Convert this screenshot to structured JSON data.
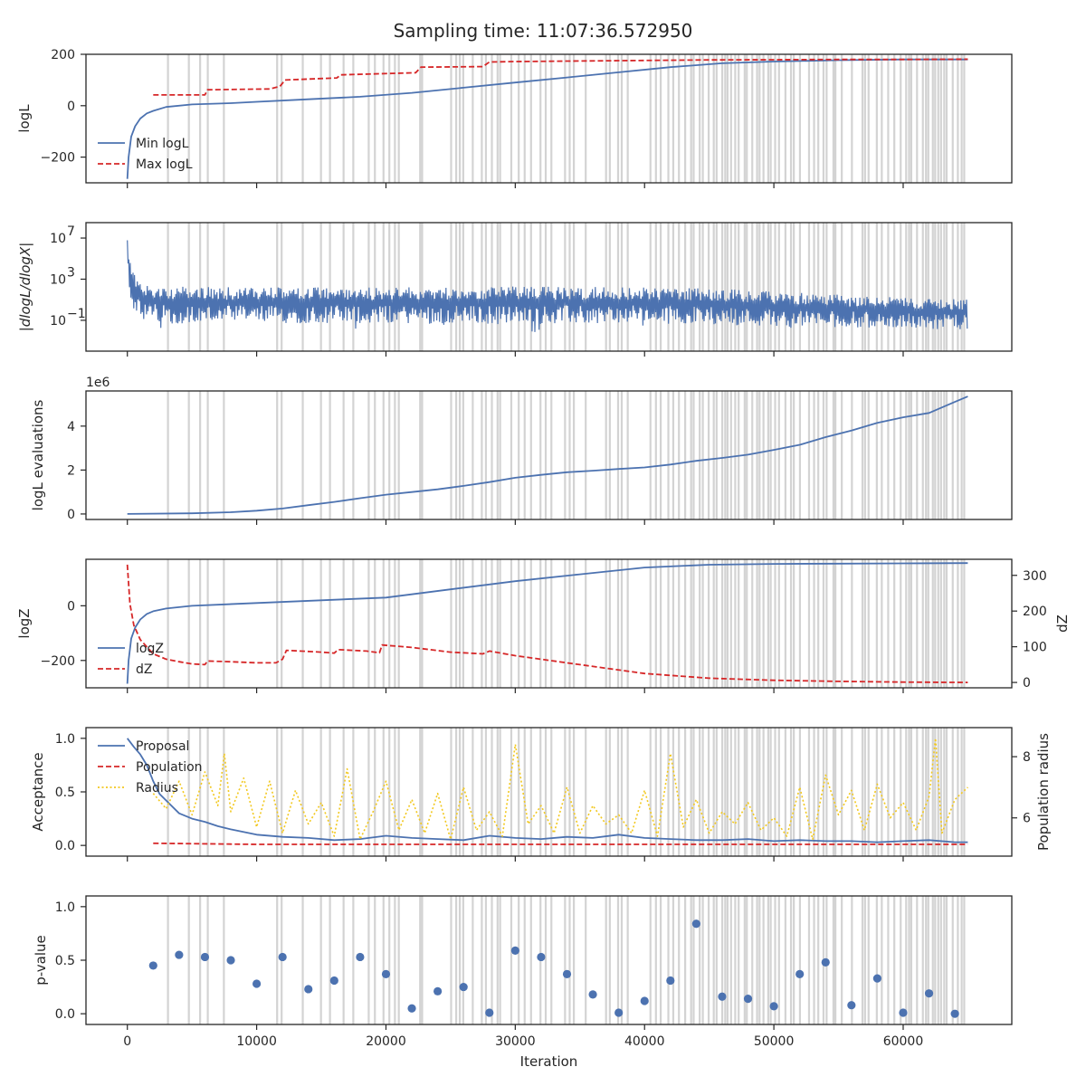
{
  "figure": {
    "title": "Sampling time: 11:07:36.572950",
    "colors": {
      "blue": "#4c72b0",
      "red": "#d62728",
      "gold": "#f2c81e",
      "band": "#d3d3d3",
      "axis": "#262626"
    }
  },
  "chart_data": [
    {
      "type": "line",
      "id": "logl",
      "ylabel": "logL",
      "xlim": [
        -3200,
        68400
      ],
      "ylim": [
        -300,
        200
      ],
      "yticks": [
        -200,
        0,
        200
      ],
      "ytick_labels": [
        "−200",
        "0",
        "200"
      ],
      "legend": {
        "placement": "center-left",
        "entries": [
          "Min logL",
          "Max logL"
        ]
      },
      "series": [
        {
          "name": "Min logL",
          "style": "solid",
          "color": "#4c72b0",
          "x": [
            0,
            100,
            300,
            600,
            1000,
            1500,
            2000,
            3000,
            5000,
            8000,
            10000,
            14000,
            18000,
            22000,
            26000,
            30000,
            34000,
            38000,
            42000,
            46000,
            50000,
            55000,
            60000,
            65000
          ],
          "y": [
            -285,
            -200,
            -120,
            -80,
            -50,
            -30,
            -20,
            -5,
            5,
            10,
            15,
            25,
            35,
            50,
            70,
            90,
            110,
            130,
            150,
            165,
            172,
            177,
            180,
            180
          ]
        },
        {
          "name": "Max logL",
          "style": "dashed",
          "color": "#d62728",
          "x": [
            2000,
            6000,
            6200,
            11000,
            11800,
            12200,
            16200,
            16500,
            22300,
            22700,
            27500,
            28000,
            30000,
            35000,
            40000,
            45000,
            50000,
            55000,
            60000,
            65000
          ],
          "y": [
            42,
            42,
            62,
            65,
            75,
            100,
            108,
            120,
            128,
            150,
            152,
            170,
            172,
            174,
            176,
            178,
            179,
            180,
            180,
            181
          ]
        }
      ]
    },
    {
      "type": "line",
      "id": "gradient",
      "ylabel": "|dlogL/dlogX|",
      "scale": "log",
      "xlim": [
        -3200,
        68400
      ],
      "ylim_exp": [
        -4,
        8.5
      ],
      "yticks_exp": [
        7,
        3,
        -1
      ],
      "ytick_labels": [
        "10",
        "10",
        "10"
      ],
      "ytick_exponents": [
        "7",
        "3",
        "−1"
      ],
      "series": [
        {
          "name": "",
          "style": "noisy-band",
          "color": "#4c72b0",
          "x": [
            0,
            100,
            300,
            1000,
            3000,
            10000,
            20000,
            30000,
            40000,
            45000,
            50000,
            55000,
            60000,
            65000
          ],
          "top_exp": [
            7.5,
            5.5,
            4.0,
            2.6,
            2.3,
            2.2,
            2.2,
            2.3,
            2.2,
            2.1,
            1.8,
            1.5,
            1.2,
            1.0
          ],
          "bottom_exp": [
            5.0,
            2.5,
            0.5,
            -1.0,
            -1.3,
            -1.3,
            -1.3,
            -1.4,
            -1.3,
            -1.4,
            -1.6,
            -1.7,
            -1.8,
            -1.9
          ]
        }
      ]
    },
    {
      "type": "line",
      "id": "evaluations",
      "ylabel": "logL evaluations",
      "offset_text": "1e6",
      "xlim": [
        -3200,
        68400
      ],
      "ylim": [
        -0.25,
        5.6
      ],
      "yticks": [
        0,
        2,
        4
      ],
      "ytick_labels": [
        "0",
        "2",
        "4"
      ],
      "series": [
        {
          "name": "",
          "style": "solid",
          "color": "#4c72b0",
          "x": [
            0,
            5000,
            8000,
            10000,
            12000,
            14000,
            16000,
            18000,
            20000,
            22000,
            24000,
            26000,
            28000,
            30000,
            32000,
            34000,
            36000,
            38000,
            40000,
            42000,
            44000,
            46000,
            48000,
            50000,
            52000,
            54000,
            56000,
            58000,
            60000,
            62000,
            64000,
            65000
          ],
          "y": [
            0.0,
            0.03,
            0.08,
            0.15,
            0.25,
            0.4,
            0.55,
            0.72,
            0.88,
            1.0,
            1.12,
            1.28,
            1.45,
            1.65,
            1.78,
            1.9,
            1.97,
            2.05,
            2.12,
            2.25,
            2.42,
            2.55,
            2.7,
            2.92,
            3.15,
            3.5,
            3.8,
            4.15,
            4.4,
            4.6,
            5.1,
            5.35
          ]
        }
      ]
    },
    {
      "type": "line",
      "id": "logz",
      "ylabel": "logZ",
      "ylabel_right": "dZ",
      "xlim": [
        -3200,
        68400
      ],
      "ylim": [
        -300,
        170
      ],
      "yticks": [
        -200,
        0
      ],
      "ytick_labels": [
        "−200",
        "0"
      ],
      "ylim_right": [
        -15,
        345
      ],
      "yticks_right": [
        0,
        100,
        200,
        300
      ],
      "ytick_labels_right": [
        "0",
        "100",
        "200",
        "300"
      ],
      "legend": {
        "placement": "lower-left",
        "entries": [
          "logZ",
          "dZ"
        ]
      },
      "series": [
        {
          "name": "logZ",
          "style": "solid",
          "color": "#4c72b0",
          "axis": "left",
          "x": [
            0,
            100,
            300,
            600,
            1000,
            1500,
            2000,
            3000,
            5000,
            10000,
            15000,
            20000,
            25000,
            30000,
            35000,
            40000,
            45000,
            50000,
            55000,
            60000,
            65000
          ],
          "y": [
            -285,
            -200,
            -120,
            -80,
            -50,
            -30,
            -20,
            -10,
            0,
            10,
            20,
            30,
            60,
            90,
            115,
            140,
            150,
            153,
            154,
            155,
            156
          ]
        },
        {
          "name": "dZ",
          "style": "dashed",
          "color": "#d62728",
          "axis": "right",
          "x": [
            0,
            200,
            500,
            1000,
            2000,
            3000,
            4000,
            5000,
            6000,
            6200,
            8000,
            10000,
            11500,
            12000,
            12300,
            15000,
            16000,
            16300,
            18500,
            19500,
            19700,
            22000,
            25000,
            27500,
            28000,
            30000,
            35000,
            40000,
            45000,
            50000,
            55000,
            60000,
            65000
          ],
          "y": [
            330,
            220,
            160,
            120,
            80,
            65,
            58,
            52,
            50,
            60,
            58,
            55,
            55,
            65,
            90,
            85,
            82,
            92,
            88,
            83,
            105,
            98,
            85,
            80,
            88,
            75,
            50,
            25,
            12,
            6,
            3,
            1,
            0
          ]
        }
      ]
    },
    {
      "type": "line",
      "id": "acceptance",
      "ylabel": "Acceptance",
      "ylabel_right": "Population radius",
      "xlim": [
        -3200,
        68400
      ],
      "ylim": [
        -0.1,
        1.1
      ],
      "yticks": [
        0.0,
        0.5,
        1.0
      ],
      "ytick_labels": [
        "0.0",
        "0.5",
        "1.0"
      ],
      "ylim_right": [
        4.75,
        8.95
      ],
      "yticks_right": [
        6,
        8
      ],
      "ytick_labels_right": [
        "6",
        "8"
      ],
      "legend": {
        "placement": "top-left",
        "entries": [
          "Proposal",
          "Population",
          "Radius"
        ]
      },
      "series": [
        {
          "name": "Proposal",
          "style": "solid",
          "color": "#4c72b0",
          "axis": "left",
          "x": [
            0,
            500,
            1000,
            1500,
            2000,
            2500,
            3000,
            4000,
            5000,
            6000,
            7000,
            8000,
            10000,
            12000,
            14000,
            16000,
            18000,
            20000,
            22000,
            24000,
            26000,
            28000,
            30000,
            32000,
            34000,
            36000,
            38000,
            40000,
            42000,
            44000,
            46000,
            48000,
            50000,
            52000,
            54000,
            56000,
            58000,
            60000,
            62000,
            64000,
            65000
          ],
          "y": [
            1.0,
            0.92,
            0.85,
            0.75,
            0.6,
            0.48,
            0.42,
            0.3,
            0.25,
            0.22,
            0.18,
            0.15,
            0.1,
            0.08,
            0.07,
            0.05,
            0.06,
            0.09,
            0.07,
            0.06,
            0.05,
            0.09,
            0.07,
            0.06,
            0.08,
            0.07,
            0.1,
            0.07,
            0.06,
            0.05,
            0.05,
            0.06,
            0.04,
            0.05,
            0.04,
            0.04,
            0.03,
            0.04,
            0.05,
            0.03,
            0.03
          ]
        },
        {
          "name": "Population",
          "style": "dashed",
          "color": "#d62728",
          "axis": "left",
          "x": [
            2000,
            10000,
            20000,
            30000,
            40000,
            50000,
            60000,
            65000
          ],
          "y": [
            0.02,
            0.01,
            0.01,
            0.01,
            0.01,
            0.01,
            0.01,
            0.01
          ]
        },
        {
          "name": "Radius",
          "style": "dotted",
          "color": "#f2c81e",
          "axis": "right",
          "x": [
            2000,
            3000,
            4000,
            5000,
            6000,
            7000,
            7500,
            8000,
            9000,
            10000,
            11000,
            12000,
            13000,
            14000,
            15000,
            16000,
            17000,
            18000,
            19000,
            20000,
            21000,
            22000,
            23000,
            24000,
            25000,
            26000,
            27000,
            28000,
            29000,
            30000,
            31000,
            32000,
            33000,
            34000,
            35000,
            36000,
            37000,
            38000,
            39000,
            40000,
            41000,
            42000,
            43000,
            44000,
            45000,
            46000,
            47000,
            48000,
            49000,
            50000,
            51000,
            52000,
            53000,
            54000,
            55000,
            56000,
            57000,
            58000,
            59000,
            60000,
            61000,
            62000,
            62500,
            63000,
            64000,
            65000
          ],
          "y": [
            6.8,
            6.3,
            7.2,
            6.1,
            7.5,
            6.4,
            8.1,
            6.2,
            7.3,
            5.7,
            7.2,
            5.5,
            6.9,
            5.8,
            6.5,
            5.4,
            7.6,
            5.3,
            6.2,
            7.2,
            5.6,
            6.6,
            5.5,
            6.8,
            5.3,
            7.0,
            5.6,
            6.2,
            5.4,
            8.4,
            5.8,
            6.4,
            5.5,
            7.0,
            5.5,
            6.4,
            5.8,
            6.1,
            5.5,
            6.9,
            5.4,
            8.1,
            5.7,
            6.6,
            5.5,
            6.2,
            5.8,
            6.5,
            5.6,
            6.0,
            5.4,
            7.0,
            5.3,
            7.4,
            6.1,
            6.9,
            5.6,
            7.1,
            6.0,
            6.5,
            5.6,
            6.7,
            8.6,
            5.5,
            6.6,
            7.0
          ]
        }
      ]
    },
    {
      "type": "scatter",
      "id": "pvalue",
      "ylabel": "p-value",
      "xlabel": "Iteration",
      "xlim": [
        -3200,
        68400
      ],
      "ylim": [
        -0.1,
        1.1
      ],
      "yticks": [
        0.0,
        0.5,
        1.0
      ],
      "ytick_labels": [
        "0.0",
        "0.5",
        "1.0"
      ],
      "xticks": [
        0,
        10000,
        20000,
        30000,
        40000,
        50000,
        60000
      ],
      "xtick_labels": [
        "0",
        "10000",
        "20000",
        "30000",
        "40000",
        "50000",
        "60000"
      ],
      "series": [
        {
          "name": "",
          "color": "#4c72b0",
          "x": [
            2000,
            4000,
            6000,
            8000,
            10000,
            12000,
            14000,
            16000,
            18000,
            20000,
            22000,
            24000,
            26000,
            28000,
            30000,
            32000,
            34000,
            36000,
            38000,
            40000,
            42000,
            44000,
            46000,
            48000,
            50000,
            52000,
            54000,
            56000,
            58000,
            60000,
            62000,
            64000
          ],
          "y": [
            0.45,
            0.55,
            0.53,
            0.5,
            0.28,
            0.53,
            0.23,
            0.31,
            0.53,
            0.37,
            0.05,
            0.21,
            0.25,
            0.01,
            0.59,
            0.53,
            0.37,
            0.18,
            0.01,
            0.12,
            0.31,
            0.84,
            0.16,
            0.14,
            0.07,
            0.37,
            0.48,
            0.08,
            0.33,
            0.01,
            0.19,
            0.0
          ]
        }
      ]
    }
  ]
}
